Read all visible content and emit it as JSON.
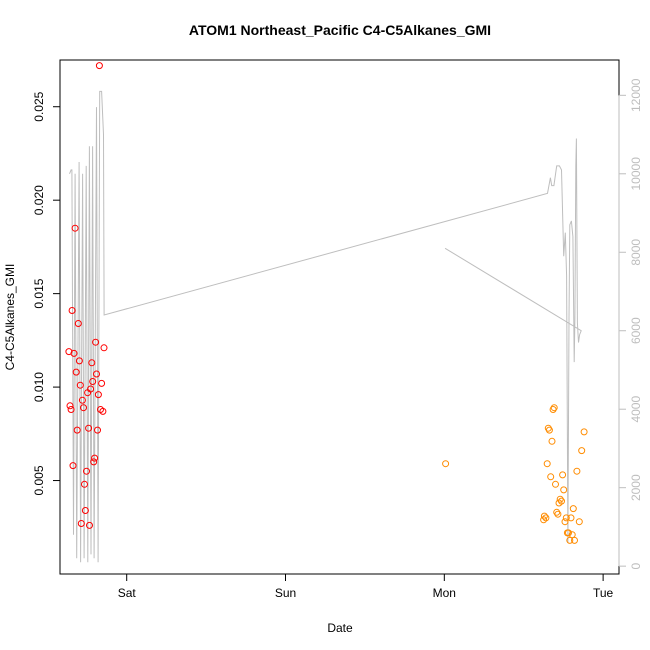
{
  "chart_data": {
    "type": "scatter",
    "title": "ATOM1 Northeast_Pacific C4-C5Alkanes_GMI",
    "xlabel": "Date",
    "ylabel": "C4-C5Alkanes_GMI",
    "x_unit": "days",
    "xlim": [
      -0.42,
      3.1
    ],
    "ylim": [
      0.0,
      0.0275
    ],
    "y2lim": [
      -200,
      12900
    ],
    "x_ticks": [
      {
        "value": 0,
        "label": "Sat"
      },
      {
        "value": 1,
        "label": "Sun"
      },
      {
        "value": 2,
        "label": "Mon"
      },
      {
        "value": 3,
        "label": "Tue"
      }
    ],
    "y_ticks": [
      {
        "value": 0.005,
        "label": "0.005"
      },
      {
        "value": 0.01,
        "label": "0.010"
      },
      {
        "value": 0.015,
        "label": "0.015"
      },
      {
        "value": 0.02,
        "label": "0.020"
      },
      {
        "value": 0.025,
        "label": "0.025"
      }
    ],
    "y2_ticks": [
      {
        "value": 0,
        "label": "0"
      },
      {
        "value": 2000,
        "label": "2000"
      },
      {
        "value": 4000,
        "label": "4000"
      },
      {
        "value": 6000,
        "label": "6000"
      },
      {
        "value": 8000,
        "label": "8000"
      },
      {
        "value": 10000,
        "label": "10000"
      },
      {
        "value": 12000,
        "label": "12000"
      }
    ],
    "colors": {
      "series1": "#ff0000",
      "series2": "#ff8c00",
      "altitude": "#bebebe",
      "axis": "#000000"
    },
    "series": [
      {
        "color": "#ff0000",
        "points": [
          [
            -0.364,
            0.0119
          ],
          [
            -0.357,
            0.009
          ],
          [
            -0.35,
            0.0088
          ],
          [
            -0.344,
            0.0141
          ],
          [
            -0.338,
            0.0058
          ],
          [
            -0.332,
            0.0118
          ],
          [
            -0.325,
            0.0185
          ],
          [
            -0.318,
            0.0108
          ],
          [
            -0.312,
            0.0077
          ],
          [
            -0.305,
            0.0134
          ],
          [
            -0.298,
            0.0114
          ],
          [
            -0.292,
            0.0101
          ],
          [
            -0.286,
            0.0027
          ],
          [
            -0.279,
            0.0093
          ],
          [
            -0.272,
            0.0089
          ],
          [
            -0.266,
            0.0048
          ],
          [
            -0.26,
            0.0034
          ],
          [
            -0.253,
            0.0055
          ],
          [
            -0.246,
            0.0097
          ],
          [
            -0.24,
            0.0078
          ],
          [
            -0.234,
            0.0026
          ],
          [
            -0.227,
            0.0099
          ],
          [
            -0.22,
            0.0113
          ],
          [
            -0.214,
            0.0103
          ],
          [
            -0.208,
            0.006
          ],
          [
            -0.202,
            0.0062
          ],
          [
            -0.196,
            0.0124
          ],
          [
            -0.19,
            0.0107
          ],
          [
            -0.184,
            0.0077
          ],
          [
            -0.178,
            0.0096
          ],
          [
            -0.172,
            0.0272
          ],
          [
            -0.165,
            0.0088
          ],
          [
            -0.158,
            0.0102
          ],
          [
            -0.15,
            0.0087
          ],
          [
            -0.143,
            0.0121
          ]
        ]
      },
      {
        "color": "#ff8c00",
        "points": [
          [
            2.008,
            0.0059
          ],
          [
            2.625,
            0.0029
          ],
          [
            2.63,
            0.0031
          ],
          [
            2.64,
            0.003
          ],
          [
            2.648,
            0.0059
          ],
          [
            2.655,
            0.0078
          ],
          [
            2.662,
            0.0077
          ],
          [
            2.67,
            0.0052
          ],
          [
            2.678,
            0.0071
          ],
          [
            2.685,
            0.0088
          ],
          [
            2.692,
            0.0089
          ],
          [
            2.7,
            0.0048
          ],
          [
            2.708,
            0.0033
          ],
          [
            2.715,
            0.0032
          ],
          [
            2.722,
            0.0038
          ],
          [
            2.73,
            0.004
          ],
          [
            2.738,
            0.0039
          ],
          [
            2.745,
            0.0053
          ],
          [
            2.752,
            0.0045
          ],
          [
            2.76,
            0.0028
          ],
          [
            2.768,
            0.003
          ],
          [
            2.775,
            0.0022
          ],
          [
            2.782,
            0.0022
          ],
          [
            2.79,
            0.0018
          ],
          [
            2.798,
            0.003
          ],
          [
            2.805,
            0.0021
          ],
          [
            2.812,
            0.0035
          ],
          [
            2.82,
            0.0018
          ],
          [
            2.835,
            0.0055
          ],
          [
            2.85,
            0.0028
          ],
          [
            2.865,
            0.0066
          ],
          [
            2.88,
            0.0076
          ]
        ]
      }
    ],
    "altitude_line": {
      "color": "#bebebe",
      "points": [
        [
          -0.36,
          10000
        ],
        [
          -0.35,
          10100
        ],
        [
          -0.345,
          10100
        ],
        [
          -0.335,
          800
        ],
        [
          -0.325,
          10000
        ],
        [
          -0.315,
          200
        ],
        [
          -0.3,
          10300
        ],
        [
          -0.29,
          100
        ],
        [
          -0.278,
          10000
        ],
        [
          -0.268,
          200
        ],
        [
          -0.255,
          10200
        ],
        [
          -0.245,
          100
        ],
        [
          -0.235,
          10700
        ],
        [
          -0.225,
          300
        ],
        [
          -0.215,
          10700
        ],
        [
          -0.205,
          200
        ],
        [
          -0.19,
          11700
        ],
        [
          -0.18,
          100
        ],
        [
          -0.17,
          12100
        ],
        [
          -0.158,
          12100
        ],
        [
          -0.146,
          11000
        ],
        [
          -0.142,
          6400
        ],
        [
          2.65,
          9500
        ],
        [
          2.668,
          9900
        ],
        [
          2.676,
          9700
        ],
        [
          2.69,
          9700
        ],
        [
          2.708,
          10200
        ],
        [
          2.725,
          10200
        ],
        [
          2.738,
          10100
        ],
        [
          2.748,
          8500
        ],
        [
          2.752,
          7900
        ],
        [
          2.762,
          8500
        ],
        [
          2.77,
          7400
        ],
        [
          2.778,
          600
        ],
        [
          2.785,
          6300
        ],
        [
          2.79,
          8700
        ],
        [
          2.8,
          8800
        ],
        [
          2.81,
          8400
        ],
        [
          2.818,
          5200
        ],
        [
          2.822,
          6300
        ],
        [
          2.828,
          10200
        ],
        [
          2.832,
          10900
        ],
        [
          2.838,
          6200
        ],
        [
          2.845,
          5700
        ],
        [
          2.852,
          5900
        ],
        [
          2.862,
          6000
        ],
        [
          2.005,
          8100
        ]
      ]
    }
  }
}
